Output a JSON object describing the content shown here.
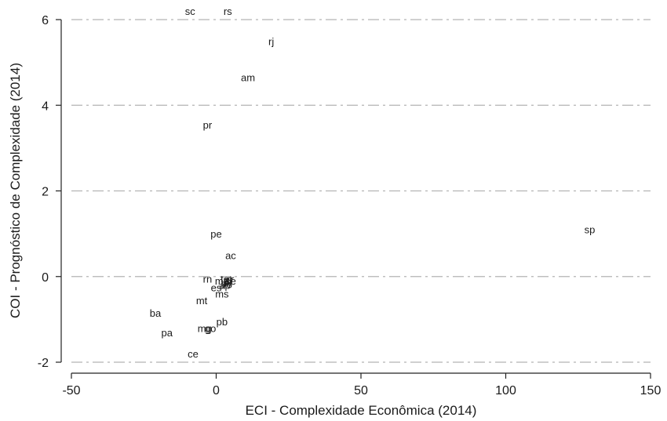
{
  "chart_data": {
    "type": "scatter",
    "title": "",
    "xlabel": "ECI - Complexidade Econômica (2014)",
    "ylabel": "COI - Prognóstico de Complexidade (2014)",
    "xlim": [
      -50,
      150
    ],
    "ylim": [
      -2,
      6
    ],
    "xticks": [
      -50,
      0,
      50,
      100,
      150
    ],
    "yticks": [
      -2,
      0,
      2,
      4,
      6
    ],
    "grid": {
      "y": true,
      "x": false,
      "style": "dash-dot"
    },
    "marker": "label",
    "points": [
      {
        "label": "sc",
        "x": -9,
        "y": 6.2
      },
      {
        "label": "rs",
        "x": 4,
        "y": 6.2
      },
      {
        "label": "rj",
        "x": 19,
        "y": 5.5
      },
      {
        "label": "am",
        "x": 11,
        "y": 4.65
      },
      {
        "label": "pr",
        "x": -3,
        "y": 3.55
      },
      {
        "label": "sp",
        "x": 129,
        "y": 1.1
      },
      {
        "label": "pe",
        "x": 0,
        "y": 1.0
      },
      {
        "label": "ac",
        "x": 5,
        "y": 0.5
      },
      {
        "label": "rn",
        "x": -3,
        "y": -0.05
      },
      {
        "label": "es",
        "x": 0,
        "y": -0.25
      },
      {
        "label": "ms",
        "x": 2,
        "y": -0.4
      },
      {
        "label": "mt",
        "x": -5,
        "y": -0.55
      },
      {
        "label": "ba",
        "x": -21,
        "y": -0.85
      },
      {
        "label": "pb",
        "x": 2,
        "y": -1.05
      },
      {
        "label": "mg",
        "x": -4,
        "y": -1.2
      },
      {
        "label": "go",
        "x": -2,
        "y": -1.2
      },
      {
        "label": "pa",
        "x": -17,
        "y": -1.3
      },
      {
        "label": "ce",
        "x": -8,
        "y": -1.8
      },
      {
        "label": "to",
        "x": 3,
        "y": -0.05
      },
      {
        "label": "al",
        "x": 4,
        "y": -0.08
      },
      {
        "label": "se",
        "x": 5,
        "y": -0.1
      },
      {
        "label": "pi",
        "x": 3,
        "y": -0.15
      },
      {
        "label": "ma",
        "x": 2,
        "y": -0.1
      },
      {
        "label": "ro",
        "x": 4,
        "y": -0.18
      },
      {
        "label": "rr",
        "x": 5,
        "y": -0.05
      },
      {
        "label": "ap",
        "x": 3,
        "y": -0.2
      },
      {
        "label": "df",
        "x": 4,
        "y": -0.12
      }
    ]
  }
}
